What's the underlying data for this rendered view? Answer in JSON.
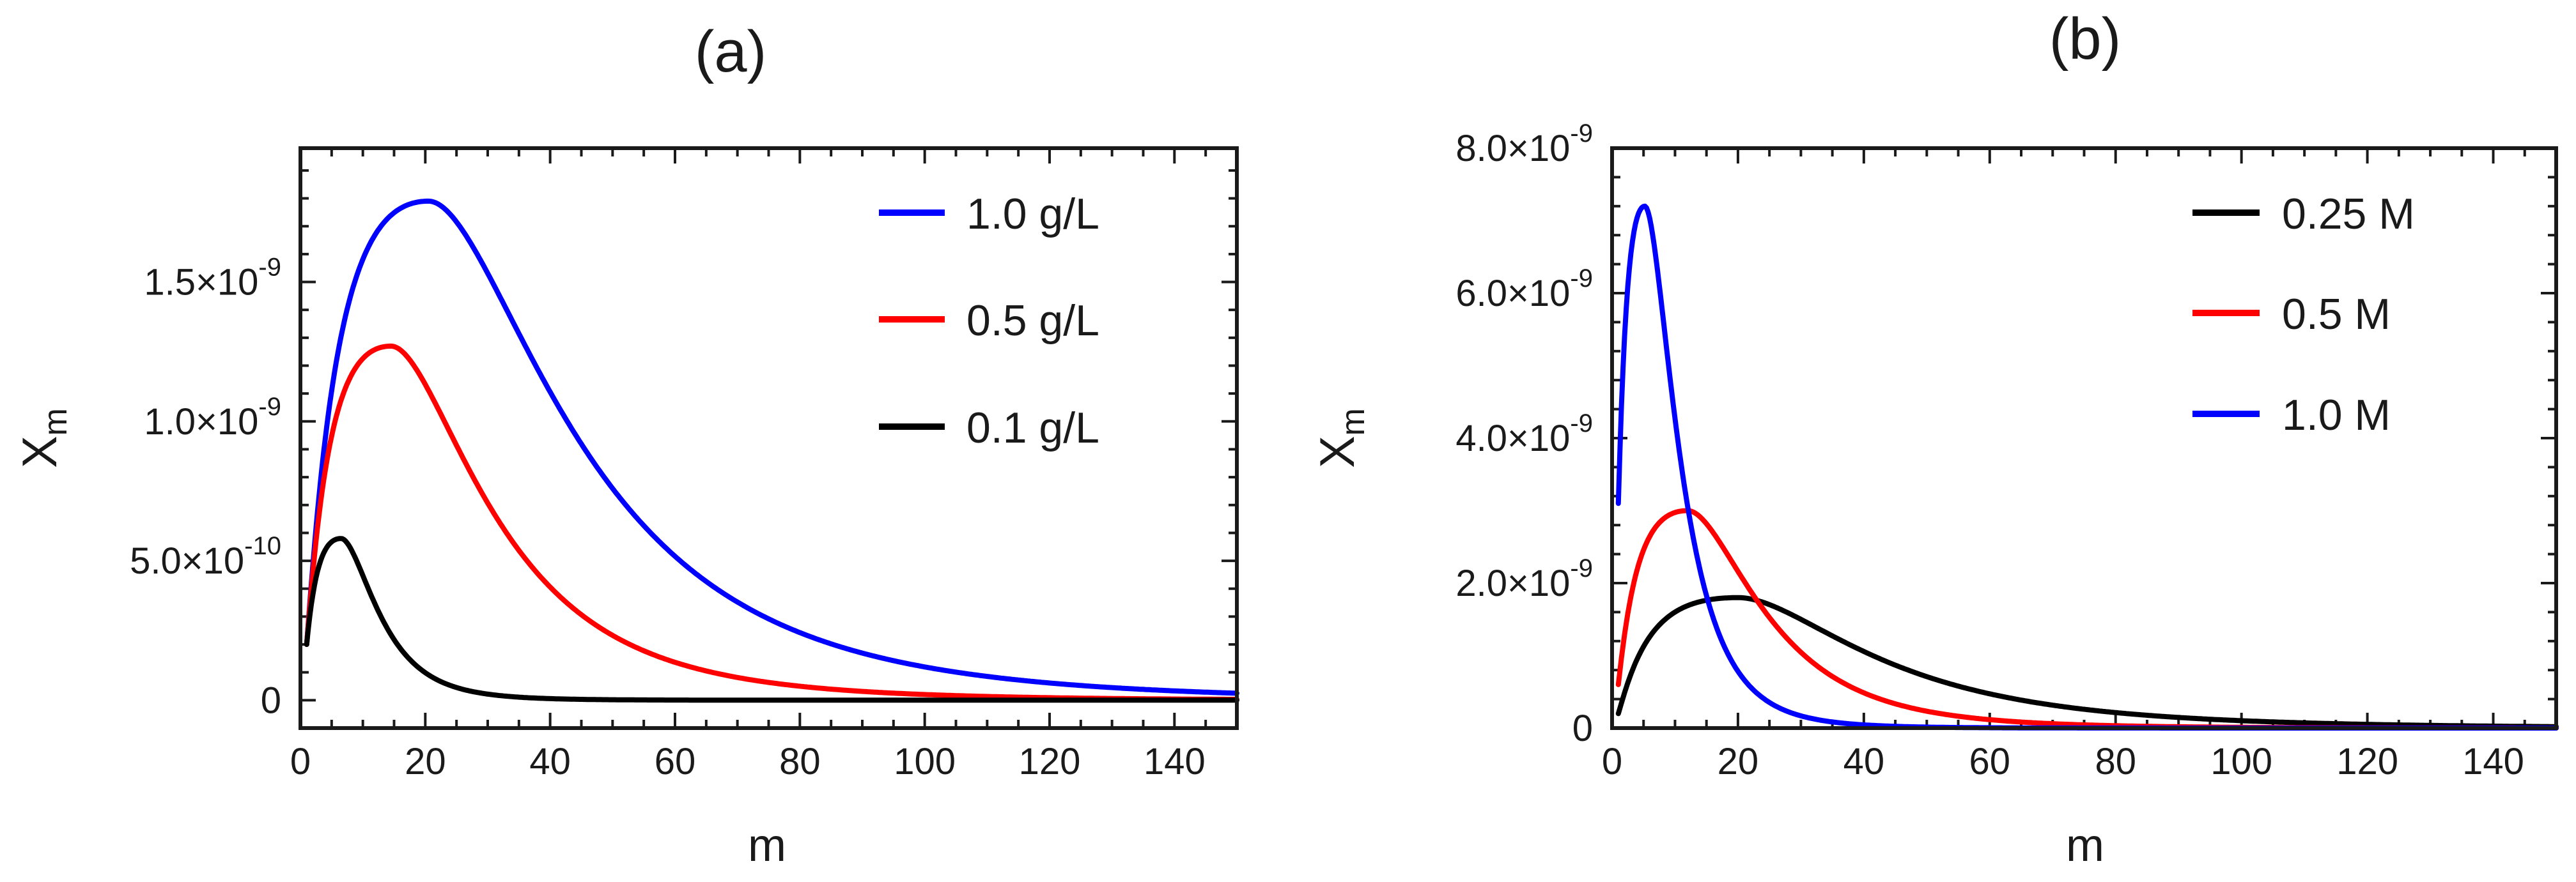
{
  "chart_data": [
    {
      "type": "line",
      "title": "(a)",
      "xlabel": "m",
      "ylabel_main": "X",
      "ylabel_sub": "m",
      "xlim": [
        0,
        150
      ],
      "ylim": [
        -1e-10,
        1.98e-09
      ],
      "x_ticks": [
        {
          "value": 0,
          "label": "0"
        },
        {
          "value": 20,
          "label": "20"
        },
        {
          "value": 40,
          "label": "40"
        },
        {
          "value": 60,
          "label": "60"
        },
        {
          "value": 80,
          "label": "80"
        },
        {
          "value": 100,
          "label": "100"
        },
        {
          "value": 120,
          "label": "120"
        },
        {
          "value": 140,
          "label": "140"
        }
      ],
      "y_ticks": [
        {
          "value": 0,
          "label": "0",
          "mantissa": "",
          "exponent": ""
        },
        {
          "value": 5e-10,
          "label": "5.0×10^-10",
          "mantissa": "5.0",
          "exponent": "-10"
        },
        {
          "value": 1e-09,
          "label": "1.0×10^-9",
          "mantissa": "1.0",
          "exponent": "-9"
        },
        {
          "value": 1.5e-09,
          "label": "1.5×10^-9",
          "mantissa": "1.5",
          "exponent": "-9"
        }
      ],
      "grid": false,
      "legend_position": "top-right",
      "series": [
        {
          "name": "1.0 g/L",
          "color": "#0000ff",
          "peak_x": 20.5,
          "peak_y": 1.79e-09,
          "x_start": 1,
          "y_start": 2e-10,
          "x_end": 150,
          "y_end": 2.5e-11
        },
        {
          "name": "0.5 g/L",
          "color": "#ff0000",
          "peak_x": 14.5,
          "peak_y": 1.27e-09,
          "x_start": 1,
          "y_start": 2e-10,
          "x_end": 150,
          "y_end": 3e-12
        },
        {
          "name": "0.1 g/L",
          "color": "#000000",
          "peak_x": 6.5,
          "peak_y": 5.8e-10,
          "x_start": 1,
          "y_start": 2e-10,
          "x_end": 150,
          "y_end": 0
        }
      ]
    },
    {
      "type": "line",
      "title": "(b)",
      "xlabel": "m",
      "ylabel_main": "X",
      "ylabel_sub": "m",
      "xlim": [
        0,
        150
      ],
      "ylim": [
        0,
        8e-09
      ],
      "x_ticks": [
        {
          "value": 0,
          "label": "0"
        },
        {
          "value": 20,
          "label": "20"
        },
        {
          "value": 40,
          "label": "40"
        },
        {
          "value": 60,
          "label": "60"
        },
        {
          "value": 80,
          "label": "80"
        },
        {
          "value": 100,
          "label": "100"
        },
        {
          "value": 120,
          "label": "120"
        },
        {
          "value": 140,
          "label": "140"
        }
      ],
      "y_ticks": [
        {
          "value": 0,
          "label": "0",
          "mantissa": "",
          "exponent": ""
        },
        {
          "value": 2e-09,
          "label": "2.0×10^-9",
          "mantissa": "2.0",
          "exponent": "-9"
        },
        {
          "value": 4e-09,
          "label": "4.0×10^-9",
          "mantissa": "4.0",
          "exponent": "-9"
        },
        {
          "value": 6e-09,
          "label": "6.0×10^-9",
          "mantissa": "6.0",
          "exponent": "-9"
        },
        {
          "value": 8e-09,
          "label": "8.0×10^-9",
          "mantissa": "8.0",
          "exponent": "-9"
        }
      ],
      "grid": false,
      "legend_position": "top-right",
      "series": [
        {
          "name": "0.25 M",
          "color": "#000000",
          "peak_x": 20,
          "peak_y": 1.8e-09,
          "x_start": 1,
          "y_start": 2e-10,
          "x_end": 150,
          "y_end": 2e-11
        },
        {
          "name": "0.5 M",
          "color": "#ff0000",
          "peak_x": 12,
          "peak_y": 3e-09,
          "x_start": 1,
          "y_start": 6e-10,
          "x_end": 150,
          "y_end": 1e-12
        },
        {
          "name": "1.0 M",
          "color": "#0000ff",
          "peak_x": 5.2,
          "peak_y": 7.2e-09,
          "x_start": 1,
          "y_start": 3.1e-09,
          "x_end": 150,
          "y_end": 0
        }
      ]
    }
  ]
}
